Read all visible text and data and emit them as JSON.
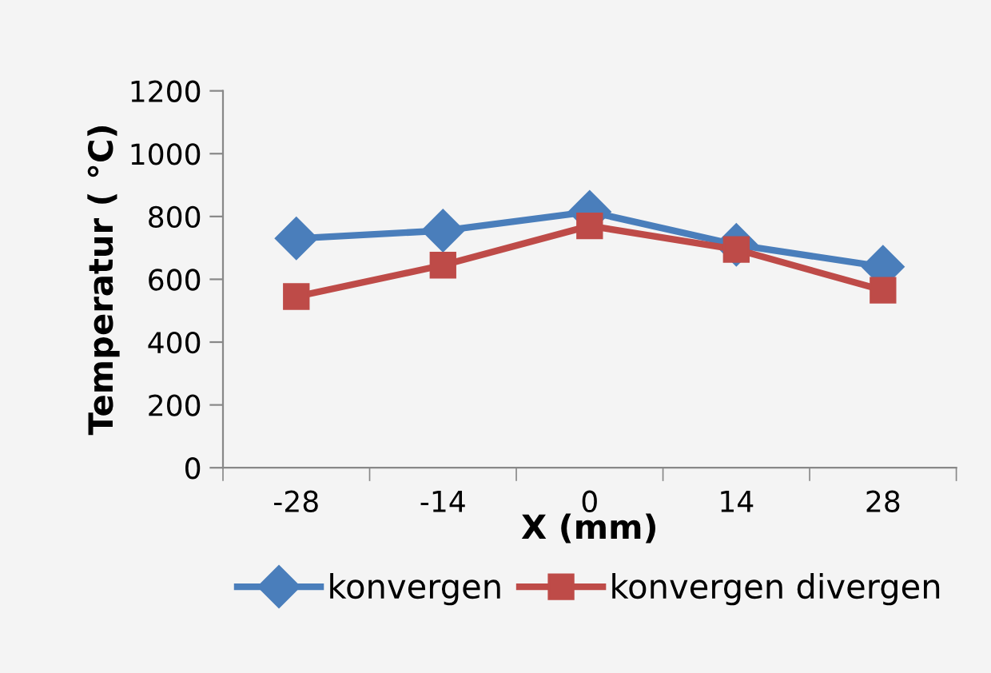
{
  "chart_data": {
    "type": "line",
    "xlabel": "X (mm)",
    "ylabel": "Temperatur ( °C)",
    "categories": [
      "-28",
      "-14",
      "0",
      "14",
      "28"
    ],
    "series": [
      {
        "name": "konvergen",
        "color": "#4a7ebb",
        "values": [
          730,
          755,
          815,
          710,
          640
        ],
        "marker": "diamond"
      },
      {
        "name": "konvergen divergen",
        "color": "#be4b48",
        "values": [
          545,
          645,
          770,
          695,
          565
        ],
        "marker": "square"
      }
    ],
    "ylim": [
      0,
      1200
    ],
    "yticks": [
      0,
      200,
      400,
      600,
      800,
      1000,
      1200
    ],
    "grid": false,
    "legend": "bottom",
    "line_style": "solid"
  }
}
